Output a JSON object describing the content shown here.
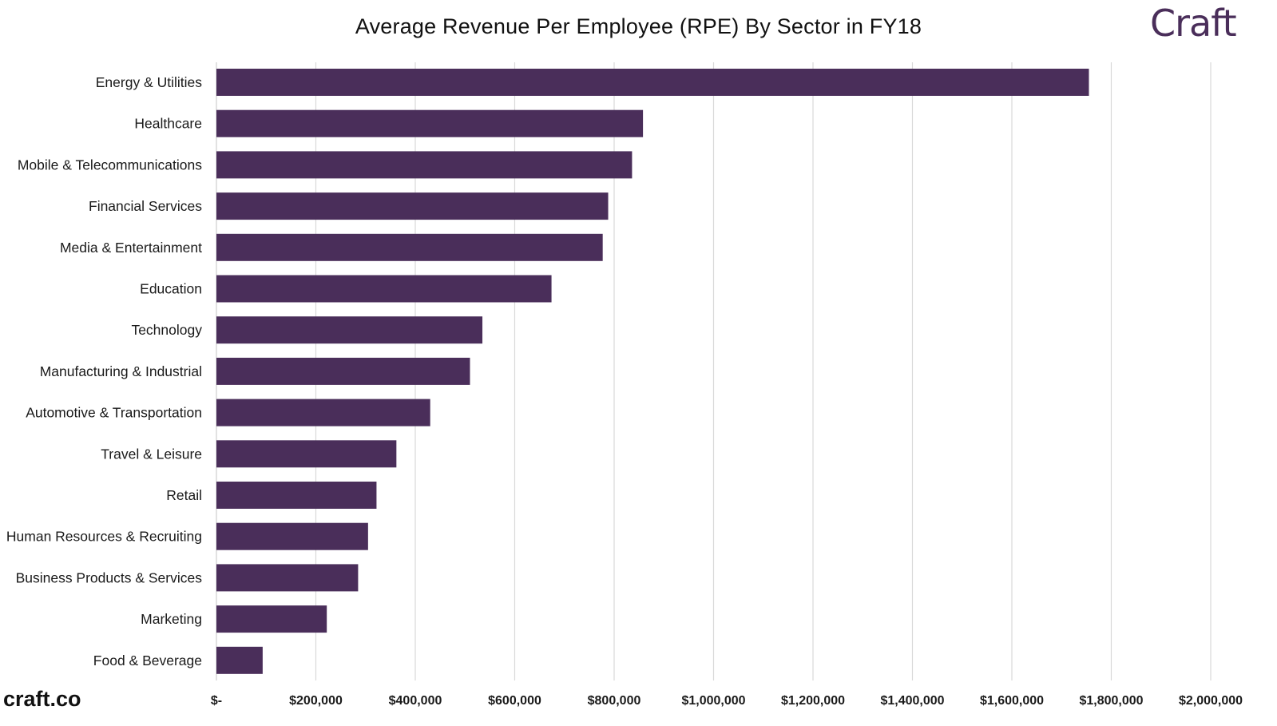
{
  "chart_data": {
    "type": "bar",
    "orientation": "horizontal",
    "title": "Average Revenue Per Employee (RPE) By Sector in FY18",
    "xlabel": "",
    "ylabel": "",
    "xlim": [
      0,
      2000000
    ],
    "grid": "vertical",
    "legend": "none",
    "bar_color": "#4a2e5a",
    "grid_color": "#d9d9d9",
    "categories": [
      "Energy & Utilities",
      "Healthcare",
      "Mobile & Telecommunications",
      "Financial Services",
      "Media & Entertainment",
      "Education",
      "Technology",
      "Manufacturing & Industrial",
      "Automotive & Transportation",
      "Travel & Leisure",
      "Retail",
      "Human Resources & Recruiting",
      "Business Products & Services",
      "Marketing",
      "Food & Beverage"
    ],
    "values": [
      1755000,
      858000,
      836000,
      788000,
      777000,
      674000,
      535000,
      510000,
      430000,
      362000,
      322000,
      305000,
      285000,
      222000,
      93000
    ],
    "ticks": [
      0,
      200000,
      400000,
      600000,
      800000,
      1000000,
      1200000,
      1400000,
      1600000,
      1800000,
      2000000
    ],
    "tick_labels": [
      "$-",
      "$200,000",
      "$400,000",
      "$600,000",
      "$800,000",
      "$1,000,000",
      "$1,200,000",
      "$1,400,000",
      "$1,600,000",
      "$1,800,000",
      "$2,000,000"
    ]
  },
  "branding": {
    "logo_text": "Craft",
    "site": "craft.co"
  }
}
